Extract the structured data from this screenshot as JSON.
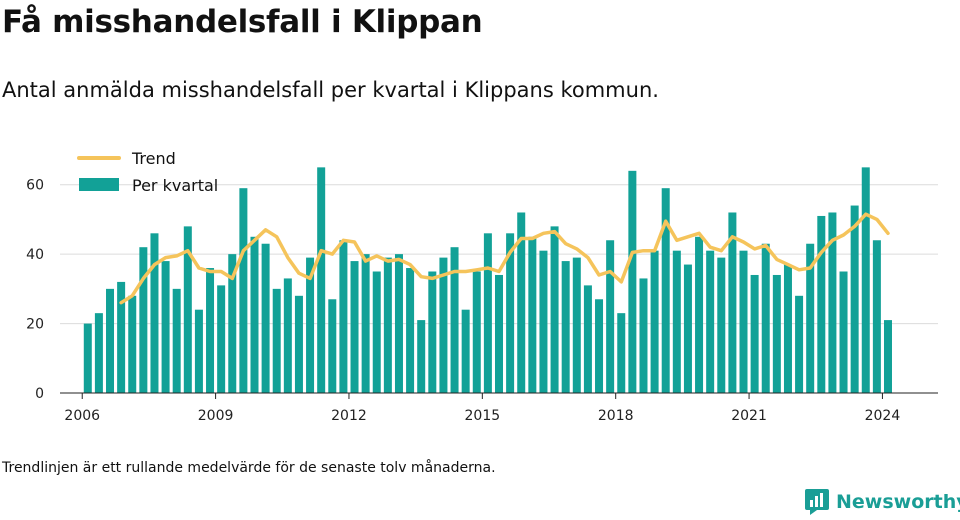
{
  "title": "Få misshandelsfall i Klippan",
  "subtitle": "Antal anmälda misshandelsfall per kvartal i Klippans kommun.",
  "footnote": "Trendlinjen är ett rullande medelvärde för de senaste tolv månaderna.",
  "brand": {
    "name": "Newsworthy",
    "icon": "newsworthy-logo-icon"
  },
  "colors": {
    "bar": "#12a197",
    "trend": "#f5c45b",
    "grid": "#dcdcdc",
    "axis": "#222222"
  },
  "chart_data": {
    "type": "bar",
    "title": "",
    "xlabel": "",
    "ylabel": "",
    "ylim": [
      0,
      70
    ],
    "yticks": [
      0,
      20,
      40,
      60
    ],
    "xlim": [
      2005.5,
      2025.25
    ],
    "xticks": [
      2006,
      2009,
      2012,
      2015,
      2018,
      2021,
      2024
    ],
    "grid": true,
    "legend_position": "top-left",
    "series": [
      {
        "name": "Per kvartal",
        "type": "bar",
        "x_start": 2006,
        "period": "quarter",
        "values": [
          20,
          23,
          30,
          32,
          28,
          42,
          46,
          38,
          30,
          48,
          24,
          36,
          31,
          40,
          59,
          45,
          43,
          30,
          33,
          28,
          39,
          65,
          27,
          44,
          38,
          40,
          35,
          39,
          40,
          36,
          21,
          35,
          39,
          42,
          24,
          35,
          46,
          34,
          46,
          52,
          45,
          41,
          48,
          38,
          39,
          31,
          27,
          44,
          23,
          64,
          33,
          41,
          59,
          41,
          37,
          45,
          41,
          39,
          52,
          41,
          34,
          43,
          34,
          37,
          28,
          43,
          51,
          52,
          35,
          54,
          65,
          44,
          21
        ]
      },
      {
        "name": "Trend",
        "type": "line",
        "x_start": 2006.75,
        "period": "quarter",
        "values": [
          26,
          28,
          33,
          37,
          39,
          39.5,
          41,
          36,
          35,
          35,
          33,
          41,
          44,
          47,
          45,
          39,
          34.5,
          33,
          41,
          40,
          44,
          43.5,
          38,
          39.5,
          38,
          38.5,
          37,
          33.5,
          33,
          34,
          35,
          35,
          35.5,
          36,
          35,
          40.5,
          44.5,
          44.5,
          46,
          46.5,
          43,
          41.5,
          39,
          34,
          35,
          32,
          40.5,
          41,
          41,
          49.5,
          44,
          45,
          46,
          42,
          41,
          45,
          43.5,
          41.5,
          42.5,
          38.5,
          37,
          35.5,
          36,
          40.5,
          44,
          45.5,
          48,
          51.5,
          50,
          46
        ]
      }
    ]
  }
}
